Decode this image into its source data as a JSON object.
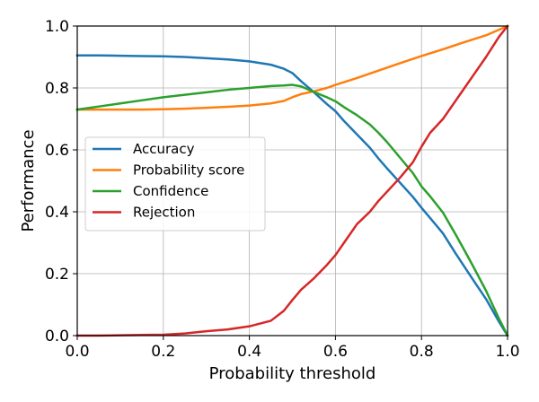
{
  "chart_data": {
    "type": "line",
    "title": "",
    "xlabel": "Probability threshold",
    "ylabel": "Performance",
    "xlim": [
      0,
      1
    ],
    "ylim": [
      0,
      1
    ],
    "xticks": [
      "0.0",
      "0.2",
      "0.4",
      "0.6",
      "0.8",
      "1.0"
    ],
    "yticks": [
      "0.0",
      "0.2",
      "0.4",
      "0.6",
      "0.8",
      "1.0"
    ],
    "grid": true,
    "legend_position": "center-left",
    "series": [
      {
        "name": "Accuracy",
        "color": "#1f77b4",
        "x": [
          0.0,
          0.05,
          0.1,
          0.15,
          0.2,
          0.25,
          0.3,
          0.35,
          0.4,
          0.45,
          0.48,
          0.5,
          0.52,
          0.55,
          0.58,
          0.6,
          0.62,
          0.65,
          0.68,
          0.7,
          0.72,
          0.75,
          0.78,
          0.8,
          0.82,
          0.85,
          0.88,
          0.9,
          0.92,
          0.95,
          0.98,
          1.0
        ],
        "y": [
          0.905,
          0.905,
          0.904,
          0.903,
          0.902,
          0.9,
          0.896,
          0.892,
          0.886,
          0.875,
          0.862,
          0.848,
          0.822,
          0.786,
          0.748,
          0.725,
          0.693,
          0.65,
          0.607,
          0.572,
          0.54,
          0.494,
          0.448,
          0.413,
          0.38,
          0.33,
          0.264,
          0.222,
          0.18,
          0.118,
          0.045,
          0.0
        ]
      },
      {
        "name": "Probability score",
        "color": "#ff7f0e",
        "x": [
          0.0,
          0.05,
          0.1,
          0.15,
          0.2,
          0.25,
          0.3,
          0.35,
          0.4,
          0.45,
          0.48,
          0.5,
          0.52,
          0.55,
          0.58,
          0.6,
          0.65,
          0.7,
          0.75,
          0.8,
          0.85,
          0.9,
          0.95,
          0.98,
          1.0
        ],
        "y": [
          0.73,
          0.73,
          0.73,
          0.73,
          0.731,
          0.733,
          0.736,
          0.739,
          0.743,
          0.75,
          0.758,
          0.77,
          0.78,
          0.789,
          0.8,
          0.81,
          0.832,
          0.856,
          0.88,
          0.903,
          0.925,
          0.948,
          0.97,
          0.988,
          1.0
        ]
      },
      {
        "name": "Confidence",
        "color": "#2ca02c",
        "x": [
          0.0,
          0.05,
          0.1,
          0.15,
          0.2,
          0.25,
          0.3,
          0.35,
          0.4,
          0.45,
          0.48,
          0.5,
          0.52,
          0.55,
          0.58,
          0.6,
          0.62,
          0.65,
          0.68,
          0.7,
          0.72,
          0.75,
          0.78,
          0.8,
          0.82,
          0.85,
          0.88,
          0.9,
          0.92,
          0.95,
          0.98,
          1.0
        ],
        "y": [
          0.73,
          0.74,
          0.75,
          0.76,
          0.77,
          0.778,
          0.786,
          0.794,
          0.8,
          0.806,
          0.808,
          0.81,
          0.805,
          0.787,
          0.77,
          0.757,
          0.738,
          0.712,
          0.682,
          0.655,
          0.625,
          0.575,
          0.525,
          0.482,
          0.45,
          0.397,
          0.325,
          0.275,
          0.224,
          0.145,
          0.055,
          0.0
        ]
      },
      {
        "name": "Rejection",
        "color": "#d62728",
        "x": [
          0.0,
          0.05,
          0.1,
          0.15,
          0.2,
          0.25,
          0.3,
          0.35,
          0.4,
          0.45,
          0.48,
          0.5,
          0.52,
          0.55,
          0.58,
          0.6,
          0.62,
          0.65,
          0.68,
          0.7,
          0.72,
          0.75,
          0.78,
          0.8,
          0.82,
          0.85,
          0.88,
          0.9,
          0.92,
          0.95,
          0.98,
          1.0
        ],
        "y": [
          0.0,
          0.0,
          0.001,
          0.002,
          0.003,
          0.007,
          0.014,
          0.02,
          0.03,
          0.048,
          0.08,
          0.115,
          0.148,
          0.185,
          0.228,
          0.26,
          0.3,
          0.36,
          0.4,
          0.435,
          0.465,
          0.51,
          0.56,
          0.61,
          0.655,
          0.7,
          0.76,
          0.8,
          0.84,
          0.9,
          0.965,
          1.0
        ]
      }
    ]
  }
}
